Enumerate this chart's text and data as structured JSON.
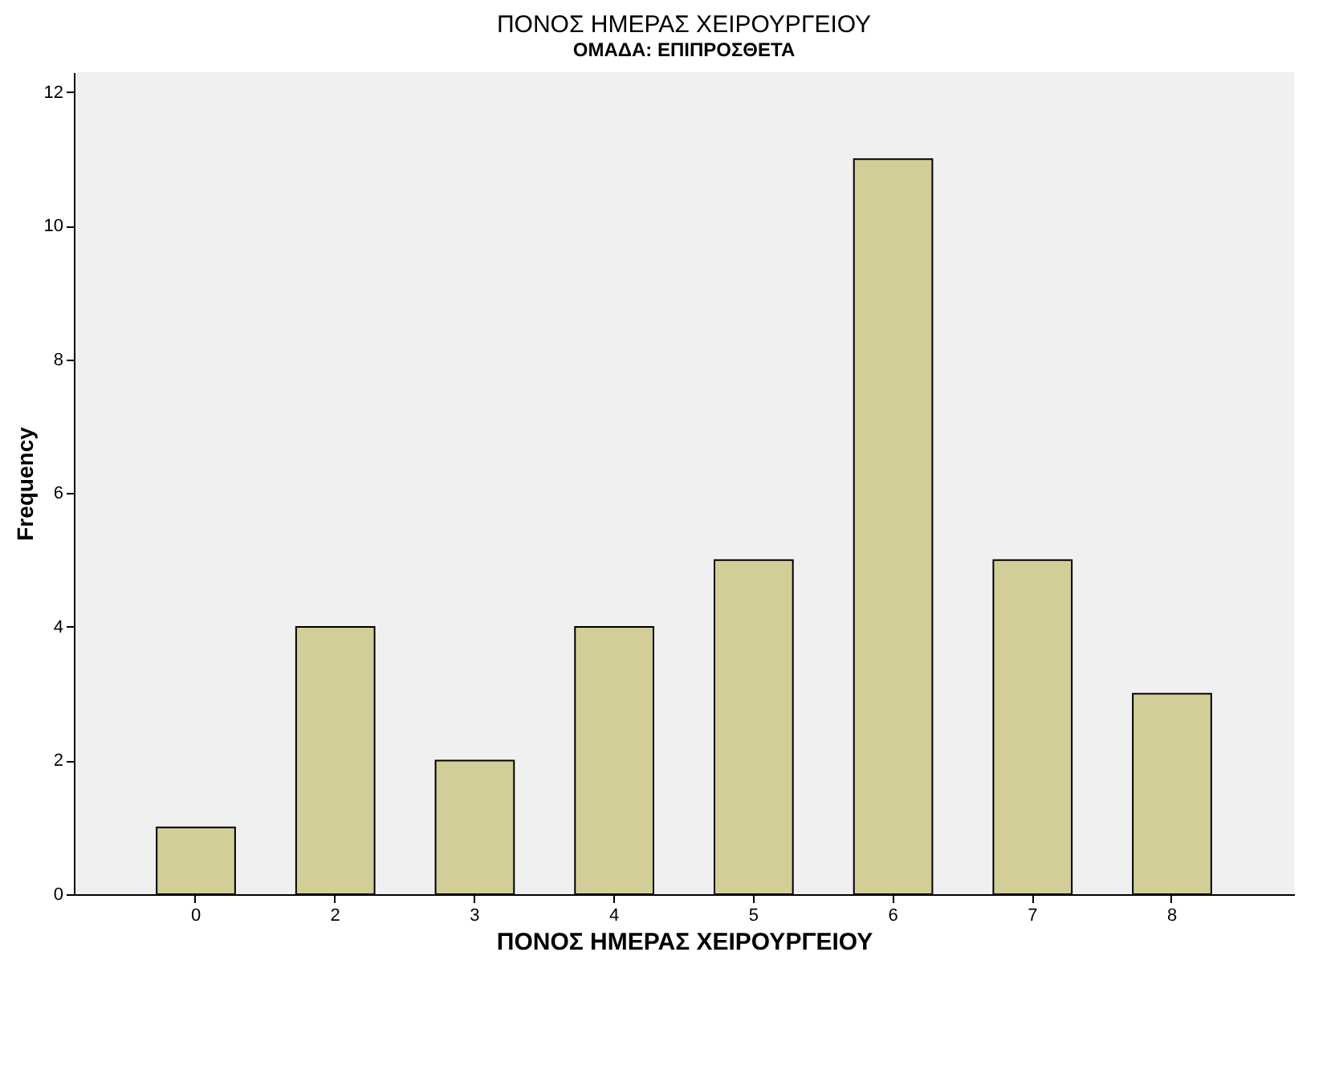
{
  "chart_data": {
    "type": "bar",
    "title": "ΠΟΝΟΣ ΗΜΕΡΑΣ ΧΕΙΡΟΥΡΓΕΙΟΥ",
    "subtitle": "ΟΜΑΔΑ: ΕΠΙΠΡΟΣΘΕΤΑ",
    "xlabel": "ΠΟΝΟΣ ΗΜΕΡΑΣ ΧΕΙΡΟΥΡΓΕΙΟΥ",
    "ylabel": "Frequency",
    "categories": [
      "0",
      "2",
      "3",
      "4",
      "5",
      "6",
      "7",
      "8"
    ],
    "values": [
      1,
      4,
      2,
      4,
      5,
      11,
      5,
      3
    ],
    "color": "#d3ce98",
    "ylim": [
      0,
      12.3
    ],
    "yticks": [
      0,
      2,
      4,
      6,
      8,
      10,
      12
    ],
    "grid": false
  }
}
